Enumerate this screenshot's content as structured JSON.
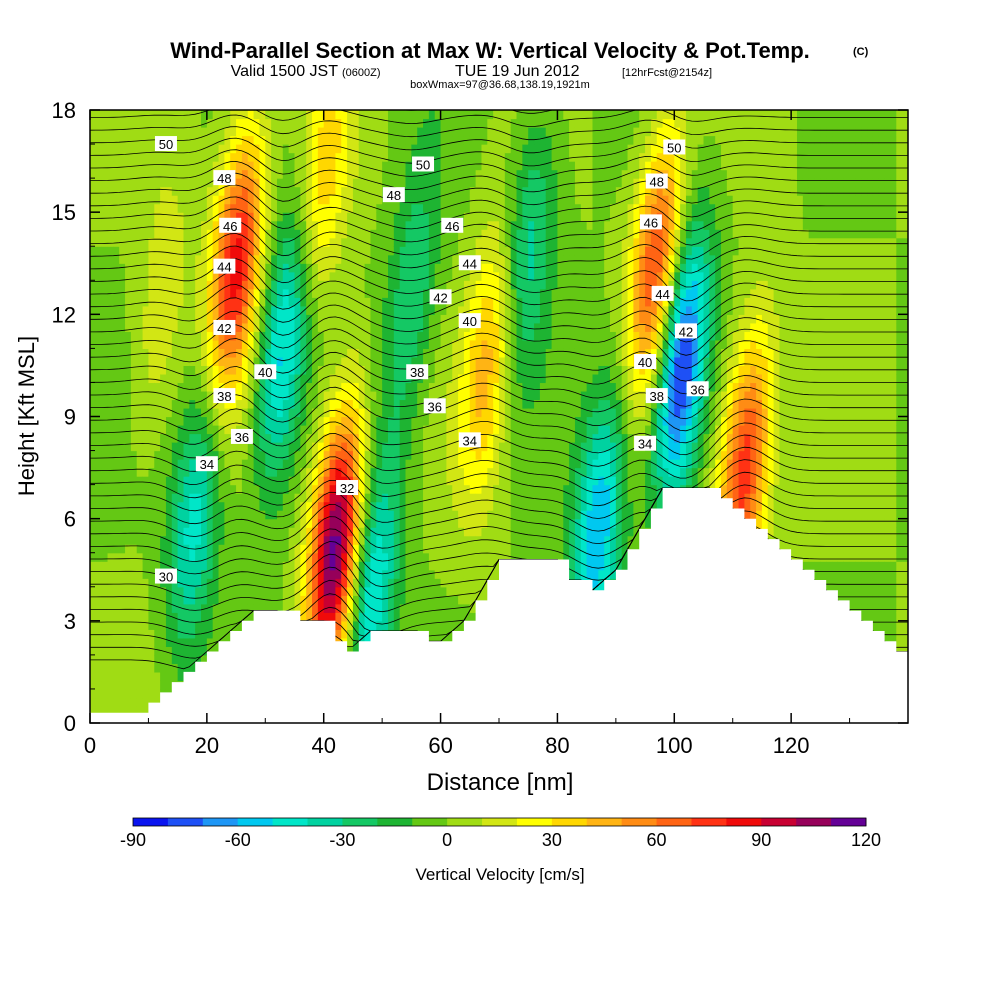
{
  "chart_data": {
    "type": "heatmap",
    "title": "Wind-Parallel Section at Max W: Vertical Velocity & Pot.Temp.",
    "title_mark": "(C)",
    "subtitle_main": "Valid 1500 JST",
    "subtitle_z": "(0600Z)",
    "subtitle_date": "TUE 19 Jun 2012",
    "subtitle_fcst": "[12hrFcst@2154z]",
    "box_note": "boxWmax=97@36.68,138.19,1921m",
    "xlabel": "Distance [nm]",
    "ylabel": "Height [Kft MSL]",
    "xlim": [
      0,
      140
    ],
    "ylim": [
      0,
      18
    ],
    "xticks": [
      "0",
      "20",
      "40",
      "60",
      "80",
      "100",
      "120"
    ],
    "yticks": [
      "0",
      "3",
      "6",
      "9",
      "12",
      "15",
      "18"
    ],
    "colorbar": {
      "label": "Vertical Velocity [cm/s]",
      "ticks": [
        "-90",
        "-60",
        "-30",
        "0",
        "30",
        "60",
        "90",
        "120"
      ],
      "levels": [
        -90,
        -80,
        -70,
        -60,
        -50,
        -40,
        -30,
        -20,
        -10,
        0,
        10,
        20,
        30,
        40,
        50,
        60,
        70,
        80,
        90,
        100,
        110,
        120
      ],
      "colors": [
        "#0a14f0",
        "#1e50f5",
        "#1e96f5",
        "#00c8f0",
        "#00e6c8",
        "#00d2a0",
        "#14c864",
        "#1eb432",
        "#64c814",
        "#a0dc14",
        "#d2e614",
        "#ffff00",
        "#ffd700",
        "#ffb414",
        "#ff8c14",
        "#ff6414",
        "#ff3214",
        "#f00a0a",
        "#c80032",
        "#96005a",
        "#640096"
      ]
    },
    "terrain": {
      "x": [
        0,
        10,
        12,
        14,
        16,
        18,
        20,
        22,
        24,
        26,
        28,
        30,
        32,
        36,
        38,
        40,
        42,
        44,
        46,
        48,
        50,
        52,
        56,
        58,
        60,
        62,
        64,
        66,
        68,
        70,
        72,
        74,
        76,
        78,
        80,
        82,
        84,
        86,
        88,
        90,
        92,
        94,
        96,
        98,
        100,
        102,
        104,
        106,
        108,
        110,
        112,
        114,
        116,
        118,
        120,
        122,
        124,
        126,
        128,
        130,
        132,
        134,
        136,
        138,
        140
      ],
      "h": [
        0.3,
        0.6,
        0.9,
        1.2,
        1.5,
        1.8,
        2.1,
        2.4,
        2.7,
        3.0,
        3.3,
        3.3,
        3.3,
        3.0,
        3.0,
        3.0,
        2.4,
        2.1,
        2.4,
        2.7,
        2.7,
        2.7,
        2.7,
        2.4,
        2.4,
        2.7,
        3.0,
        3.6,
        4.2,
        4.8,
        4.8,
        4.8,
        4.8,
        4.8,
        4.8,
        4.2,
        4.2,
        3.9,
        4.2,
        4.5,
        5.1,
        5.7,
        6.3,
        6.9,
        6.9,
        6.9,
        6.9,
        6.9,
        6.6,
        6.3,
        6.0,
        5.7,
        5.4,
        5.1,
        4.8,
        4.5,
        4.2,
        3.9,
        3.6,
        3.3,
        3.0,
        2.7,
        2.4,
        2.1,
        2.1
      ]
    },
    "updrafts": [
      {
        "x": 25,
        "y": 13.5,
        "peak": 85
      },
      {
        "x": 42,
        "y": 5.2,
        "peak": 118
      },
      {
        "x": 68,
        "y": 10.5,
        "peak": 45
      },
      {
        "x": 97,
        "y": 13.5,
        "peak": 75
      },
      {
        "x": 112,
        "y": 7.5,
        "peak": 80
      },
      {
        "x": 40,
        "y": 16.0,
        "peak": 35
      },
      {
        "x": 12,
        "y": 12.0,
        "peak": 20
      }
    ],
    "downdrafts": [
      {
        "x": 33,
        "y": 11.0,
        "peak": -55
      },
      {
        "x": 101,
        "y": 10.5,
        "peak": -88
      },
      {
        "x": 87,
        "y": 5.8,
        "peak": -60
      },
      {
        "x": 48,
        "y": 3.8,
        "peak": -55
      },
      {
        "x": 18,
        "y": 6.0,
        "peak": -45
      },
      {
        "x": 75,
        "y": 14.0,
        "peak": -35
      },
      {
        "x": 55,
        "y": 12.5,
        "peak": -30
      }
    ],
    "theta_labels": [
      {
        "text": "50",
        "x": 13,
        "y": 17.0
      },
      {
        "text": "48",
        "x": 23,
        "y": 16.0
      },
      {
        "text": "46",
        "x": 24,
        "y": 14.6
      },
      {
        "text": "44",
        "x": 23,
        "y": 13.4
      },
      {
        "text": "42",
        "x": 23,
        "y": 11.6
      },
      {
        "text": "40",
        "x": 30,
        "y": 10.3
      },
      {
        "text": "38",
        "x": 23,
        "y": 9.6
      },
      {
        "text": "36",
        "x": 26,
        "y": 8.4
      },
      {
        "text": "34",
        "x": 20,
        "y": 7.6
      },
      {
        "text": "30",
        "x": 13,
        "y": 4.3
      },
      {
        "text": "32",
        "x": 44,
        "y": 6.9
      },
      {
        "text": "50",
        "x": 57,
        "y": 16.4
      },
      {
        "text": "48",
        "x": 52,
        "y": 15.5
      },
      {
        "text": "46",
        "x": 62,
        "y": 14.6
      },
      {
        "text": "44",
        "x": 65,
        "y": 13.5
      },
      {
        "text": "42",
        "x": 60,
        "y": 12.5
      },
      {
        "text": "40",
        "x": 65,
        "y": 11.8
      },
      {
        "text": "38",
        "x": 56,
        "y": 10.3
      },
      {
        "text": "36",
        "x": 59,
        "y": 9.3
      },
      {
        "text": "34",
        "x": 65,
        "y": 8.3
      },
      {
        "text": "50",
        "x": 100,
        "y": 16.9
      },
      {
        "text": "48",
        "x": 97,
        "y": 15.9
      },
      {
        "text": "46",
        "x": 96,
        "y": 14.7
      },
      {
        "text": "44",
        "x": 98,
        "y": 12.6
      },
      {
        "text": "42",
        "x": 102,
        "y": 11.5
      },
      {
        "text": "40",
        "x": 95,
        "y": 10.6
      },
      {
        "text": "38",
        "x": 97,
        "y": 9.6
      },
      {
        "text": "36",
        "x": 104,
        "y": 9.8
      },
      {
        "text": "34",
        "x": 95,
        "y": 8.2
      }
    ],
    "theta_range": [
      28,
      52
    ]
  }
}
